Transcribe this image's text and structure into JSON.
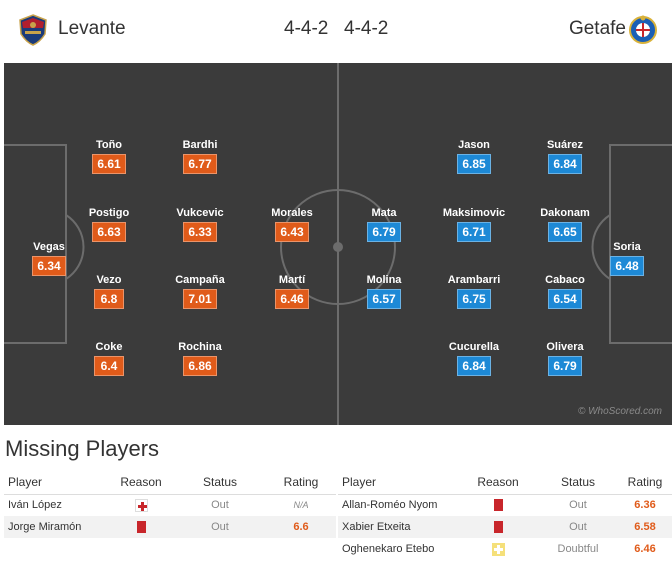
{
  "header": {
    "home_team": "Levante",
    "away_team": "Getafe",
    "home_formation": "4-4-2",
    "away_formation": "4-4-2"
  },
  "colors": {
    "home_rating": "#e05b1a",
    "away_rating": "#1d89d6",
    "pitch": "#3b3b3b"
  },
  "home_players": [
    {
      "name": "Vegas",
      "rating": "6.34"
    },
    {
      "name": "Toño",
      "rating": "6.61"
    },
    {
      "name": "Postigo",
      "rating": "6.63"
    },
    {
      "name": "Vezo",
      "rating": "6.8"
    },
    {
      "name": "Coke",
      "rating": "6.4"
    },
    {
      "name": "Bardhi",
      "rating": "6.77"
    },
    {
      "name": "Vukcevic",
      "rating": "6.33"
    },
    {
      "name": "Campaña",
      "rating": "7.01"
    },
    {
      "name": "Rochina",
      "rating": "6.86"
    },
    {
      "name": "Morales",
      "rating": "6.43"
    },
    {
      "name": "Martí",
      "rating": "6.46"
    }
  ],
  "away_players": [
    {
      "name": "Mata",
      "rating": "6.79"
    },
    {
      "name": "Molina",
      "rating": "6.57"
    },
    {
      "name": "Jason",
      "rating": "6.85"
    },
    {
      "name": "Maksimovic",
      "rating": "6.71"
    },
    {
      "name": "Arambarri",
      "rating": "6.75"
    },
    {
      "name": "Cucurella",
      "rating": "6.84"
    },
    {
      "name": "Suárez",
      "rating": "6.84"
    },
    {
      "name": "Dakonam",
      "rating": "6.65"
    },
    {
      "name": "Cabaco",
      "rating": "6.54"
    },
    {
      "name": "Olivera",
      "rating": "6.79"
    },
    {
      "name": "Soria",
      "rating": "6.48"
    }
  ],
  "watermark": "© WhoScored.com",
  "missing": {
    "title": "Missing Players",
    "columns": [
      "Player",
      "Reason",
      "Status",
      "Rating"
    ],
    "home": [
      {
        "player": "Iván López",
        "reason_icon": "injury-icon",
        "status": "Out",
        "rating": "N/A"
      },
      {
        "player": "Jorge Miramón",
        "reason_icon": "red-card-icon",
        "status": "Out",
        "rating": "6.6"
      }
    ],
    "away": [
      {
        "player": "Allan-Roméo Nyom",
        "reason_icon": "red-card-icon",
        "status": "Out",
        "rating": "6.36"
      },
      {
        "player": "Xabier Etxeita",
        "reason_icon": "red-card-icon",
        "status": "Out",
        "rating": "6.58"
      },
      {
        "player": "Oghenekaro Etebo",
        "reason_icon": "doubtful-icon",
        "status": "Doubtful",
        "rating": "6.46"
      }
    ]
  }
}
